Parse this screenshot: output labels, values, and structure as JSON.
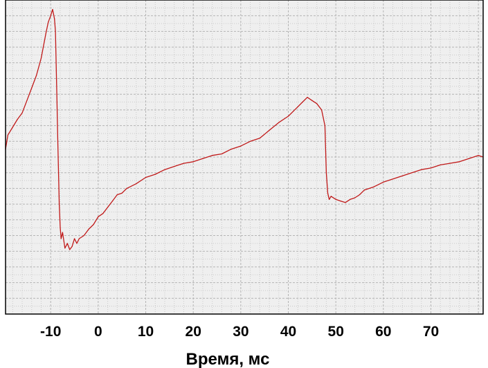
{
  "chart_data": {
    "type": "line",
    "title": "",
    "xlabel": "Время, мс",
    "ylabel": "",
    "xlim": [
      -19.5,
      81
    ],
    "ylim": [
      -1,
      1
    ],
    "x_ticks": [
      -10,
      0,
      10,
      20,
      30,
      40,
      50,
      60,
      70
    ],
    "x_tick_labels": [
      "-10",
      "0",
      "10",
      "20",
      "30",
      "40",
      "50",
      "60",
      "70"
    ],
    "grid": true,
    "y_tick_labels_shown": false,
    "series": [
      {
        "color": "#c01818",
        "x": [
          -19.5,
          -19,
          -18,
          -17,
          -16,
          -15,
          -14,
          -13,
          -12,
          -11,
          -10.5,
          -10,
          -9.6,
          -9.2,
          -9,
          -8.7,
          -8.5,
          -8.2,
          -8,
          -7.8,
          -7.5,
          -7,
          -6.5,
          -6,
          -5.5,
          -5,
          -4.5,
          -4,
          -3,
          -2,
          -1,
          0,
          1,
          2,
          3,
          4,
          5,
          6,
          8,
          10,
          12,
          14,
          16,
          18,
          20,
          22,
          24,
          26,
          28,
          30,
          32,
          34,
          36,
          38,
          40,
          41,
          42,
          43,
          44,
          45,
          46,
          47,
          47.7,
          48,
          48.3,
          48.6,
          49,
          50,
          51,
          52,
          53,
          54,
          55,
          56,
          58,
          60,
          62,
          64,
          66,
          68,
          70,
          72,
          74,
          76,
          78,
          80,
          81
        ],
        "y": [
          0.05,
          0.14,
          0.19,
          0.24,
          0.28,
          0.36,
          0.44,
          0.52,
          0.63,
          0.79,
          0.86,
          0.9,
          0.94,
          0.88,
          0.8,
          0.4,
          0.1,
          -0.3,
          -0.45,
          -0.52,
          -0.48,
          -0.58,
          -0.55,
          -0.59,
          -0.57,
          -0.52,
          -0.55,
          -0.52,
          -0.5,
          -0.46,
          -0.43,
          -0.38,
          -0.36,
          -0.32,
          -0.28,
          -0.24,
          -0.23,
          -0.2,
          -0.17,
          -0.13,
          -0.11,
          -0.08,
          -0.06,
          -0.04,
          -0.03,
          -0.01,
          0.01,
          0.02,
          0.05,
          0.07,
          0.1,
          0.12,
          0.17,
          0.22,
          0.26,
          0.29,
          0.32,
          0.35,
          0.38,
          0.36,
          0.34,
          0.3,
          0.2,
          -0.1,
          -0.23,
          -0.27,
          -0.25,
          -0.27,
          -0.28,
          -0.29,
          -0.27,
          -0.26,
          -0.24,
          -0.21,
          -0.19,
          -0.16,
          -0.14,
          -0.12,
          -0.1,
          -0.08,
          -0.07,
          -0.05,
          -0.04,
          -0.03,
          -0.01,
          0.01,
          0.0
        ]
      }
    ]
  }
}
